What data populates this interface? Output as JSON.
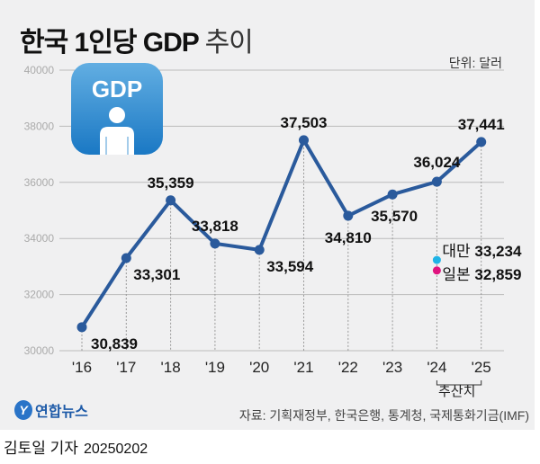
{
  "title": {
    "bold": "한국 1인당 GDP",
    "light": "추이"
  },
  "unit": "단위: 달러",
  "icon_label": "GDP",
  "chart_data": {
    "type": "line",
    "title": "한국 1인당 GDP 추이",
    "categories": [
      "'16",
      "'17",
      "'18",
      "'19",
      "'20",
      "'21",
      "'22",
      "'23",
      "'24",
      "'25"
    ],
    "values": [
      30839,
      33301,
      35359,
      33818,
      33594,
      37503,
      34810,
      35570,
      36024,
      37441
    ],
    "labels": [
      "30,839",
      "33,301",
      "35,359",
      "33,818",
      "33,594",
      "37,503",
      "34,810",
      "35,570",
      "36,024",
      "37,441"
    ],
    "ylim": [
      30000,
      40000
    ],
    "yticks": [
      "30000",
      "32000",
      "34000",
      "36000",
      "38000",
      "40000"
    ],
    "line_color": "#2a5a9c",
    "annotations": [
      {
        "name": "대만",
        "value": 33234,
        "label": "33,234",
        "category": "'24",
        "color": "#1fb3e6"
      },
      {
        "name": "일본",
        "value": 32859,
        "label": "32,859",
        "category": "'24",
        "color": "#e0147f"
      }
    ],
    "estimate_label": "추산치"
  },
  "source": "자료: 기획재정부, 한국은행, 통계청, 국제통화기금(IMF)",
  "logo": "연합뉴스",
  "byline": {
    "author": "김토일 기자",
    "date": "20250202"
  }
}
